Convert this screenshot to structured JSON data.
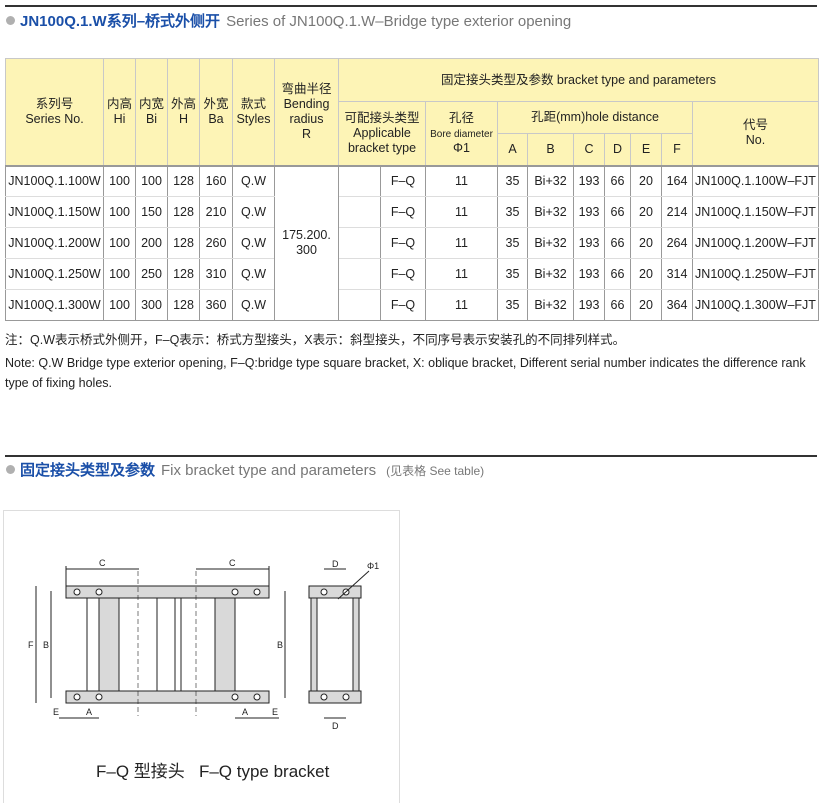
{
  "section1": {
    "title_zh": "JN100Q.1.W系列–桥式外侧开",
    "title_en": "Series of JN100Q.1.W–Bridge type exterior opening"
  },
  "table": {
    "headers": {
      "series_zh": "系列号",
      "series_en": "Series No.",
      "hi_zh": "内高",
      "hi_en": "Hi",
      "bi_zh": "内宽",
      "bi_en": "Bi",
      "h_zh": "外高",
      "h_en": "H",
      "ba_zh": "外宽",
      "ba_en": "Ba",
      "styles_zh": "款式",
      "styles_en": "Styles",
      "radius_zh": "弯曲半径",
      "radius_en1": "Bending",
      "radius_en2": "radius",
      "radius_en3": "R",
      "bracket_group": "固定接头类型及参数 bracket type and parameters",
      "applicable_zh": "可配接头类型",
      "applicable_en1": "Applicable",
      "applicable_en2": "bracket type",
      "bore_zh": "孔径",
      "bore_en": "Bore diameter",
      "bore_sym": "Φ1",
      "hole_distance": "孔距(mm)hole distance",
      "A": "A",
      "B": "B",
      "C": "C",
      "D": "D",
      "E": "E",
      "F": "F",
      "no_zh": "代号",
      "no_en": "No."
    },
    "bending_radius": "175.200.\n300",
    "rows": [
      {
        "series": "JN100Q.1.100W",
        "hi": "100",
        "bi": "100",
        "h": "128",
        "ba": "160",
        "style": "Q.W",
        "bracket": "F–Q",
        "bore": "11",
        "A": "35",
        "B": "Bi+32",
        "C": "193",
        "D": "66",
        "E": "20",
        "F": "164",
        "no": "JN100Q.1.100W–FJT"
      },
      {
        "series": "JN100Q.1.150W",
        "hi": "100",
        "bi": "150",
        "h": "128",
        "ba": "210",
        "style": "Q.W",
        "bracket": "F–Q",
        "bore": "11",
        "A": "35",
        "B": "Bi+32",
        "C": "193",
        "D": "66",
        "E": "20",
        "F": "214",
        "no": "JN100Q.1.150W–FJT"
      },
      {
        "series": "JN100Q.1.200W",
        "hi": "100",
        "bi": "200",
        "h": "128",
        "ba": "260",
        "style": "Q.W",
        "bracket": "F–Q",
        "bore": "11",
        "A": "35",
        "B": "Bi+32",
        "C": "193",
        "D": "66",
        "E": "20",
        "F": "264",
        "no": "JN100Q.1.200W–FJT"
      },
      {
        "series": "JN100Q.1.250W",
        "hi": "100",
        "bi": "250",
        "h": "128",
        "ba": "310",
        "style": "Q.W",
        "bracket": "F–Q",
        "bore": "11",
        "A": "35",
        "B": "Bi+32",
        "C": "193",
        "D": "66",
        "E": "20",
        "F": "314",
        "no": "JN100Q.1.250W–FJT"
      },
      {
        "series": "JN100Q.1.300W",
        "hi": "100",
        "bi": "300",
        "h": "128",
        "ba": "360",
        "style": "Q.W",
        "bracket": "F–Q",
        "bore": "11",
        "A": "35",
        "B": "Bi+32",
        "C": "193",
        "D": "66",
        "E": "20",
        "F": "364",
        "no": "JN100Q.1.300W–FJT"
      }
    ]
  },
  "notes": {
    "zh": "注：Q.W表示桥式外侧开，F–Q表示：桥式方型接头，X表示：斜型接头，不同序号表示安装孔的不同排列样式。",
    "en": "Note: Q.W Bridge type exterior opening, F–Q:bridge type square bracket, X: oblique bracket, Different serial number indicates the difference rank type of fixing holes."
  },
  "section2": {
    "title_zh": "固定接头类型及参数",
    "title_en": "Fix bracket type and parameters",
    "see_table": "(见表格 See table)"
  },
  "diagram": {
    "labels": {
      "C": "C",
      "B": "B",
      "F": "F",
      "A": "A",
      "E": "E",
      "D": "D",
      "phi": "Φ1"
    },
    "caption": "F–Q 型接头   F–Q type bracket",
    "fill_color": "#d9d9d9"
  },
  "colors": {
    "accent": "#1a4fa8",
    "header_bg": "#fdf4b6"
  }
}
